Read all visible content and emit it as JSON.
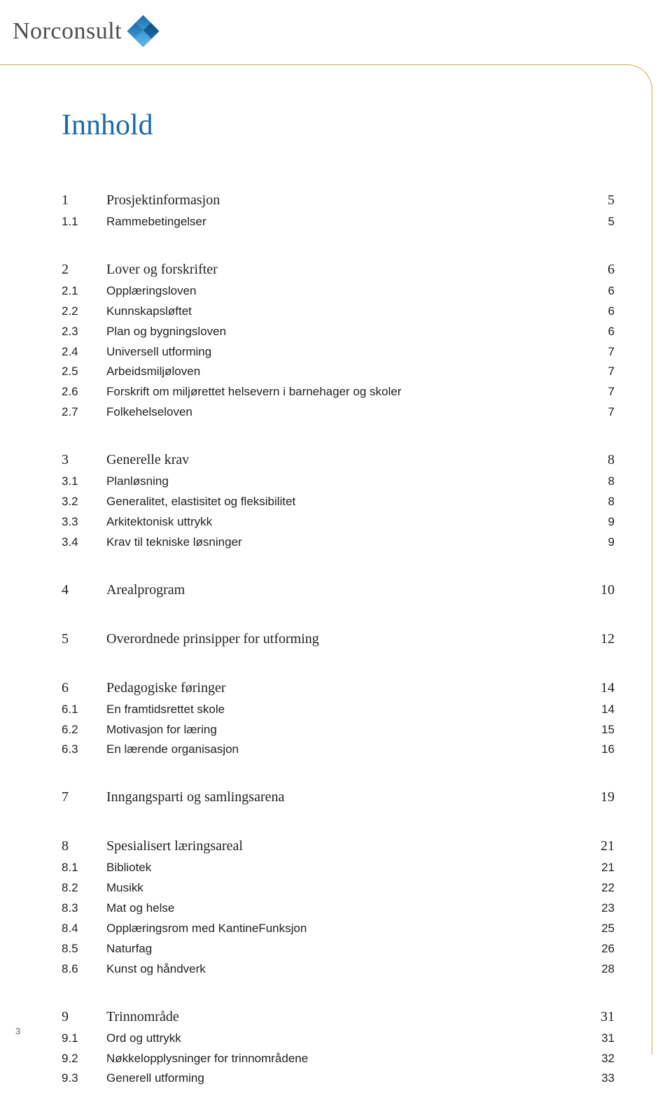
{
  "brand": {
    "name": "Norconsult",
    "accent_color": "#1a6ba8",
    "frame_color": "#c9a94b",
    "text_color": "#222222"
  },
  "title": "Innhold",
  "page_number": "3",
  "sections": [
    {
      "heading": {
        "num": "1",
        "label": "Prosjektinformasjon",
        "page": "5"
      },
      "items": [
        {
          "num": "1.1",
          "label": "Rammebetingelser",
          "page": "5"
        }
      ]
    },
    {
      "heading": {
        "num": "2",
        "label": "Lover og forskrifter",
        "page": "6"
      },
      "items": [
        {
          "num": "2.1",
          "label": "Opplæringsloven",
          "page": "6"
        },
        {
          "num": "2.2",
          "label": "Kunnskapsløftet",
          "page": "6"
        },
        {
          "num": "2.3",
          "label": "Plan og bygningsloven",
          "page": "6"
        },
        {
          "num": "2.4",
          "label": "Universell utforming",
          "page": "7"
        },
        {
          "num": "2.5",
          "label": "Arbeidsmiljøloven",
          "page": "7"
        },
        {
          "num": "2.6",
          "label": "Forskrift om miljørettet helsevern i barnehager og skoler",
          "page": "7"
        },
        {
          "num": "2.7",
          "label": "Folkehelseloven",
          "page": "7"
        }
      ]
    },
    {
      "heading": {
        "num": "3",
        "label": "Generelle krav",
        "page": "8"
      },
      "items": [
        {
          "num": "3.1",
          "label": "Planløsning",
          "page": "8"
        },
        {
          "num": "3.2",
          "label": "Generalitet, elastisitet og fleksibilitet",
          "page": "8"
        },
        {
          "num": "3.3",
          "label": "Arkitektonisk uttrykk",
          "page": "9"
        },
        {
          "num": "3.4",
          "label": "Krav til tekniske løsninger",
          "page": "9"
        }
      ]
    },
    {
      "heading": {
        "num": "4",
        "label": "Arealprogram",
        "page": "10"
      },
      "items": []
    },
    {
      "heading": {
        "num": "5",
        "label": "Overordnede prinsipper for utforming",
        "page": "12"
      },
      "items": []
    },
    {
      "heading": {
        "num": "6",
        "label": "Pedagogiske føringer",
        "page": "14"
      },
      "items": [
        {
          "num": "6.1",
          "label": "En framtidsrettet skole",
          "page": "14"
        },
        {
          "num": "6.2",
          "label": "Motivasjon for læring",
          "page": "15"
        },
        {
          "num": "6.3",
          "label": "En lærende organisasjon",
          "page": "16"
        }
      ]
    },
    {
      "heading": {
        "num": "7",
        "label": "Inngangsparti og samlingsarena",
        "page": "19"
      },
      "items": []
    },
    {
      "heading": {
        "num": "8",
        "label": "Spesialisert læringsareal",
        "page": "21"
      },
      "items": [
        {
          "num": "8.1",
          "label": "Bibliotek",
          "page": "21"
        },
        {
          "num": "8.2",
          "label": "Musikk",
          "page": "22"
        },
        {
          "num": "8.3",
          "label": "Mat og helse",
          "page": "23"
        },
        {
          "num": "8.4",
          "label": "Opplæringsrom med KantineFunksjon",
          "page": "25"
        },
        {
          "num": "8.5",
          "label": "Naturfag",
          "page": "26"
        },
        {
          "num": "8.6",
          "label": "Kunst og håndverk",
          "page": "28"
        }
      ]
    },
    {
      "heading": {
        "num": "9",
        "label": "Trinnområde",
        "page": "31"
      },
      "items": [
        {
          "num": "9.1",
          "label": "Ord og uttrykk",
          "page": "31"
        },
        {
          "num": "9.2",
          "label": "Nøkkelopplysninger for trinnområdene",
          "page": "32"
        },
        {
          "num": "9.3",
          "label": "Generell utforming",
          "page": "33"
        }
      ]
    }
  ]
}
